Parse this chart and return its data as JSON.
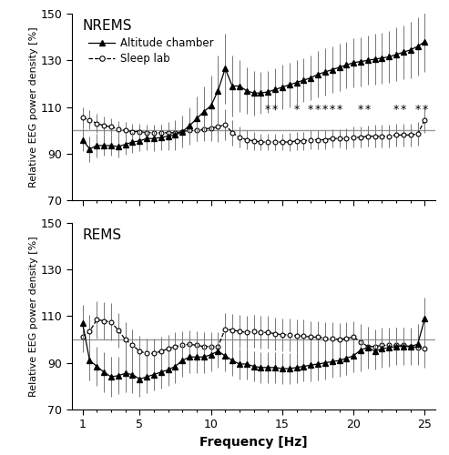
{
  "freq": [
    1.0,
    1.5,
    2.0,
    2.5,
    3.0,
    3.5,
    4.0,
    4.5,
    5.0,
    5.5,
    6.0,
    6.5,
    7.0,
    7.5,
    8.0,
    8.5,
    9.0,
    9.5,
    10.0,
    10.5,
    11.0,
    11.5,
    12.0,
    12.5,
    13.0,
    13.5,
    14.0,
    14.5,
    15.0,
    15.5,
    16.0,
    16.5,
    17.0,
    17.5,
    18.0,
    18.5,
    19.0,
    19.5,
    20.0,
    20.5,
    21.0,
    21.5,
    22.0,
    22.5,
    23.0,
    23.5,
    24.0,
    24.5,
    25.0
  ],
  "nrem_alt": [
    96.0,
    92.0,
    93.5,
    93.5,
    93.5,
    93.0,
    94.0,
    95.0,
    95.5,
    96.5,
    96.5,
    97.0,
    97.5,
    98.0,
    99.5,
    102.0,
    105.0,
    108.0,
    110.5,
    117.0,
    126.5,
    119.0,
    119.0,
    117.0,
    116.0,
    116.0,
    116.5,
    117.5,
    118.5,
    119.5,
    120.5,
    121.5,
    122.5,
    124.0,
    125.0,
    126.0,
    127.0,
    128.0,
    129.0,
    129.5,
    130.0,
    130.5,
    131.0,
    131.5,
    132.5,
    133.5,
    134.5,
    136.0,
    138.0
  ],
  "nrem_alt_se": [
    5.0,
    5.5,
    5.0,
    4.5,
    4.5,
    4.5,
    4.5,
    4.5,
    4.5,
    5.0,
    5.5,
    5.5,
    6.0,
    6.5,
    7.0,
    8.0,
    9.5,
    11.0,
    13.0,
    15.0,
    15.0,
    13.0,
    11.0,
    10.0,
    9.5,
    9.0,
    9.0,
    9.0,
    9.5,
    9.5,
    9.5,
    9.5,
    9.5,
    10.0,
    10.0,
    10.0,
    10.0,
    10.0,
    10.5,
    10.5,
    10.5,
    11.0,
    11.0,
    11.0,
    11.5,
    11.5,
    12.0,
    12.5,
    13.0
  ],
  "nrem_sleep": [
    105.5,
    104.5,
    103.0,
    102.0,
    101.5,
    100.5,
    100.0,
    99.5,
    99.5,
    99.0,
    99.0,
    99.0,
    99.0,
    99.0,
    99.5,
    100.0,
    100.0,
    100.5,
    101.0,
    101.5,
    102.5,
    99.0,
    97.0,
    96.0,
    95.5,
    95.0,
    95.0,
    95.0,
    95.0,
    95.0,
    95.5,
    95.5,
    96.0,
    96.0,
    96.0,
    96.5,
    96.5,
    96.5,
    97.0,
    97.0,
    97.5,
    97.5,
    97.5,
    97.5,
    98.0,
    98.0,
    98.0,
    98.5,
    104.5
  ],
  "nrem_sleep_se": [
    4.5,
    4.0,
    4.0,
    4.0,
    3.5,
    3.5,
    3.5,
    3.5,
    3.5,
    3.5,
    3.5,
    3.5,
    3.5,
    3.5,
    4.0,
    4.0,
    4.5,
    5.0,
    5.5,
    6.5,
    6.5,
    5.5,
    4.5,
    4.0,
    4.0,
    3.5,
    3.5,
    3.5,
    3.5,
    4.0,
    4.0,
    4.0,
    4.0,
    4.0,
    4.0,
    4.0,
    4.0,
    4.5,
    4.5,
    4.5,
    4.5,
    5.0,
    5.0,
    5.0,
    5.0,
    5.0,
    5.0,
    5.0,
    5.5
  ],
  "nrem_sig_freqs": [
    14.0,
    14.5,
    16.0,
    17.0,
    17.5,
    18.0,
    18.5,
    19.0,
    20.5,
    21.0,
    23.0,
    23.5,
    24.5,
    25.0
  ],
  "rem_alt": [
    107.0,
    91.0,
    88.5,
    86.0,
    84.0,
    84.5,
    85.5,
    85.0,
    83.0,
    84.0,
    85.0,
    86.0,
    87.0,
    88.5,
    91.0,
    92.5,
    92.5,
    92.5,
    93.5,
    95.0,
    93.0,
    91.0,
    89.5,
    89.5,
    88.5,
    88.0,
    88.0,
    88.0,
    87.5,
    87.5,
    88.0,
    88.5,
    89.0,
    89.5,
    90.0,
    90.5,
    91.0,
    92.0,
    93.0,
    95.5,
    96.5,
    95.0,
    96.0,
    96.5,
    97.0,
    97.0,
    97.0,
    98.0,
    109.0
  ],
  "rem_alt_se": [
    8.0,
    8.5,
    8.5,
    8.5,
    8.5,
    8.0,
    8.0,
    8.0,
    7.5,
    7.0,
    7.0,
    7.0,
    7.0,
    7.0,
    7.0,
    7.0,
    7.0,
    7.0,
    7.0,
    7.0,
    6.5,
    6.5,
    6.5,
    6.5,
    6.5,
    6.5,
    6.5,
    6.5,
    6.5,
    6.5,
    6.5,
    6.5,
    7.0,
    7.0,
    7.0,
    7.0,
    7.0,
    7.0,
    7.0,
    9.0,
    9.0,
    8.0,
    8.0,
    8.0,
    8.0,
    8.0,
    8.0,
    8.5,
    9.0
  ],
  "rem_sleep": [
    101.0,
    103.5,
    108.5,
    108.0,
    107.5,
    104.0,
    100.0,
    97.5,
    95.0,
    94.0,
    94.0,
    95.0,
    96.0,
    97.0,
    97.5,
    98.0,
    97.5,
    97.0,
    97.0,
    97.0,
    104.5,
    104.0,
    103.5,
    103.0,
    103.5,
    103.0,
    103.0,
    102.5,
    102.0,
    102.0,
    101.5,
    101.5,
    101.0,
    101.0,
    100.5,
    100.5,
    100.0,
    100.5,
    101.0,
    99.0,
    97.0,
    97.0,
    97.5,
    97.5,
    97.5,
    97.5,
    97.0,
    96.5,
    96.0
  ],
  "rem_sleep_se": [
    6.5,
    7.0,
    8.0,
    8.0,
    8.0,
    7.5,
    7.5,
    7.0,
    6.5,
    6.5,
    6.5,
    6.0,
    6.0,
    6.0,
    6.0,
    6.0,
    6.0,
    6.0,
    6.0,
    6.0,
    7.0,
    7.0,
    7.0,
    7.0,
    7.0,
    7.0,
    7.0,
    7.0,
    7.0,
    7.0,
    7.0,
    7.0,
    7.0,
    7.0,
    7.0,
    7.0,
    7.0,
    7.0,
    7.0,
    7.5,
    7.5,
    7.5,
    7.5,
    7.5,
    7.5,
    7.5,
    7.5,
    7.5,
    8.0
  ],
  "ylim": [
    70,
    150
  ],
  "yticks": [
    70,
    90,
    110,
    130,
    150
  ],
  "xlim": [
    0.25,
    25.75
  ],
  "xticks": [
    1,
    5,
    10,
    15,
    20,
    25
  ],
  "baseline_color": "#999999",
  "background_color": "#ffffff",
  "ylabel": "Relative EEG power density [%]",
  "xlabel": "Frequency [Hz]",
  "nrem_title": "NREMS",
  "rem_title": "REMS"
}
